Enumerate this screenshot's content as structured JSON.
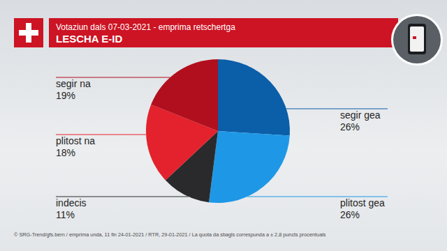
{
  "chart_data": {
    "type": "pie",
    "title": "LESCHA E-ID",
    "subtitle": "Votaziun dals 07-03-2021 - emprima retschertga",
    "categories": [
      "segir gea",
      "plitost gea",
      "indecis",
      "plitost na",
      "segir na"
    ],
    "values": [
      26,
      26,
      11,
      18,
      19
    ],
    "value_labels": [
      "26%",
      "26%",
      "11%",
      "18%",
      "19%"
    ],
    "colors": [
      "#0b5ea8",
      "#1e98e6",
      "#2a2a2c",
      "#e3222d",
      "#b10f1d"
    ],
    "data_labels": true,
    "source": "© SRG-Trend/gfs.bern  /  emprima unda, 11 fin 24-01-2021  /  RTR, 29-01-2021  /  La quota da sbagls correspunda a ± 2,8 puncts procentuals"
  }
}
